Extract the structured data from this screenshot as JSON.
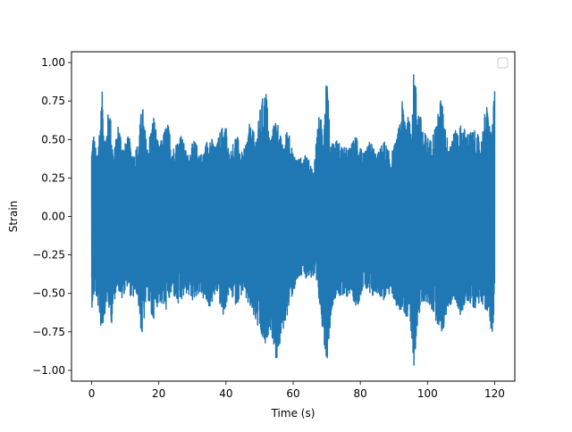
{
  "chart_data": {
    "type": "line",
    "title": "",
    "xlabel": "Time (s)",
    "ylabel": "Strain",
    "xlim": [
      -6,
      126
    ],
    "ylim": [
      -1.07,
      1.07
    ],
    "x_ticks": [
      0,
      20,
      40,
      60,
      80,
      100,
      120
    ],
    "y_ticks": [
      -1.0,
      -0.75,
      -0.5,
      -0.25,
      0.0,
      0.25,
      0.5,
      0.75,
      1.0
    ],
    "x_tick_labels": [
      "0",
      "20",
      "40",
      "60",
      "80",
      "100",
      "120"
    ],
    "y_tick_labels": [
      "−1.00",
      "−0.75",
      "−0.50",
      "−0.25",
      "0.00",
      "0.25",
      "0.50",
      "0.75",
      "1.00"
    ],
    "grid": false,
    "legend": {
      "placement": "top-right",
      "entries": []
    },
    "series": [
      {
        "color": "#1f77b4",
        "x_range": [
          0,
          120
        ],
        "envelope_upper": [
          [
            0,
            0.46
          ],
          [
            0.5,
            0.56
          ],
          [
            1.5,
            0.4
          ],
          [
            2.5,
            0.62
          ],
          [
            3.2,
            0.83
          ],
          [
            4,
            0.5
          ],
          [
            5.3,
            0.75
          ],
          [
            6.5,
            0.4
          ],
          [
            8,
            0.62
          ],
          [
            9.5,
            0.45
          ],
          [
            11,
            0.53
          ],
          [
            12.5,
            0.4
          ],
          [
            14,
            0.5
          ],
          [
            15,
            0.76
          ],
          [
            16.5,
            0.45
          ],
          [
            18.5,
            0.67
          ],
          [
            20,
            0.45
          ],
          [
            22.5,
            0.62
          ],
          [
            24.5,
            0.45
          ],
          [
            26.5,
            0.55
          ],
          [
            28.5,
            0.4
          ],
          [
            30.5,
            0.5
          ],
          [
            33,
            0.4
          ],
          [
            35,
            0.55
          ],
          [
            37,
            0.45
          ],
          [
            38.5,
            0.58
          ],
          [
            40,
            0.6
          ],
          [
            41,
            0.4
          ],
          [
            43,
            0.55
          ],
          [
            45,
            0.4
          ],
          [
            47,
            0.6
          ],
          [
            49,
            0.52
          ],
          [
            50.5,
            0.75
          ],
          [
            52,
            0.83
          ],
          [
            53,
            0.5
          ],
          [
            55,
            0.66
          ],
          [
            57,
            0.45
          ],
          [
            58.5,
            0.61
          ],
          [
            60,
            0.4
          ],
          [
            62,
            0.38
          ],
          [
            64,
            0.4
          ],
          [
            66,
            0.3
          ],
          [
            67.5,
            0.65
          ],
          [
            69,
            0.62
          ],
          [
            70,
            1.0
          ],
          [
            71,
            0.5
          ],
          [
            73,
            0.5
          ],
          [
            75,
            0.45
          ],
          [
            77,
            0.45
          ],
          [
            79,
            0.55
          ],
          [
            81,
            0.4
          ],
          [
            83,
            0.5
          ],
          [
            85,
            0.4
          ],
          [
            87,
            0.5
          ],
          [
            89,
            0.4
          ],
          [
            91,
            0.52
          ],
          [
            92.5,
            0.75
          ],
          [
            95,
            0.6
          ],
          [
            96,
            0.98
          ],
          [
            97,
            0.75
          ],
          [
            99,
            0.55
          ],
          [
            101,
            0.5
          ],
          [
            103,
            0.65
          ],
          [
            104,
            0.79
          ],
          [
            106,
            0.5
          ],
          [
            108,
            0.55
          ],
          [
            110,
            0.6
          ],
          [
            112,
            0.55
          ],
          [
            114,
            0.56
          ],
          [
            116,
            0.5
          ],
          [
            117.5,
            0.74
          ],
          [
            119,
            0.55
          ],
          [
            120,
            0.82
          ]
        ],
        "envelope_lower": [
          [
            0,
            -0.6
          ],
          [
            1,
            -0.5
          ],
          [
            2,
            -0.6
          ],
          [
            3,
            -0.77
          ],
          [
            4.5,
            -0.55
          ],
          [
            6,
            -0.7
          ],
          [
            7.5,
            -0.45
          ],
          [
            9,
            -0.55
          ],
          [
            10.5,
            -0.45
          ],
          [
            12,
            -0.55
          ],
          [
            13.5,
            -0.5
          ],
          [
            15,
            -0.81
          ],
          [
            16.5,
            -0.5
          ],
          [
            18,
            -0.7
          ],
          [
            20,
            -0.55
          ],
          [
            22,
            -0.62
          ],
          [
            24,
            -0.5
          ],
          [
            26,
            -0.6
          ],
          [
            28,
            -0.5
          ],
          [
            30,
            -0.55
          ],
          [
            32,
            -0.5
          ],
          [
            35,
            -0.6
          ],
          [
            37.5,
            -0.5
          ],
          [
            39,
            -0.67
          ],
          [
            41,
            -0.5
          ],
          [
            43,
            -0.58
          ],
          [
            45,
            -0.5
          ],
          [
            47,
            -0.6
          ],
          [
            49,
            -0.7
          ],
          [
            50.5,
            -0.8
          ],
          [
            52,
            -0.88
          ],
          [
            53,
            -0.7
          ],
          [
            55,
            -0.95
          ],
          [
            57,
            -0.75
          ],
          [
            58.5,
            -0.62
          ],
          [
            60,
            -0.5
          ],
          [
            62,
            -0.4
          ],
          [
            64,
            -0.4
          ],
          [
            66,
            -0.4
          ],
          [
            68,
            -0.6
          ],
          [
            70,
            -0.96
          ],
          [
            71.5,
            -0.6
          ],
          [
            73,
            -0.5
          ],
          [
            75,
            -0.55
          ],
          [
            77,
            -0.5
          ],
          [
            79,
            -0.6
          ],
          [
            81,
            -0.45
          ],
          [
            83,
            -0.55
          ],
          [
            85,
            -0.5
          ],
          [
            87,
            -0.55
          ],
          [
            89,
            -0.5
          ],
          [
            91,
            -0.6
          ],
          [
            93,
            -0.62
          ],
          [
            94.5,
            -0.75
          ],
          [
            96,
            -0.98
          ],
          [
            97,
            -0.7
          ],
          [
            99,
            -0.55
          ],
          [
            101,
            -0.6
          ],
          [
            103,
            -0.7
          ],
          [
            104.5,
            -0.77
          ],
          [
            106,
            -0.6
          ],
          [
            108,
            -0.55
          ],
          [
            110,
            -0.65
          ],
          [
            112,
            -0.55
          ],
          [
            114,
            -0.6
          ],
          [
            116,
            -0.55
          ],
          [
            118,
            -0.65
          ],
          [
            119.5,
            -0.78
          ],
          [
            120,
            -0.55
          ]
        ]
      }
    ]
  }
}
